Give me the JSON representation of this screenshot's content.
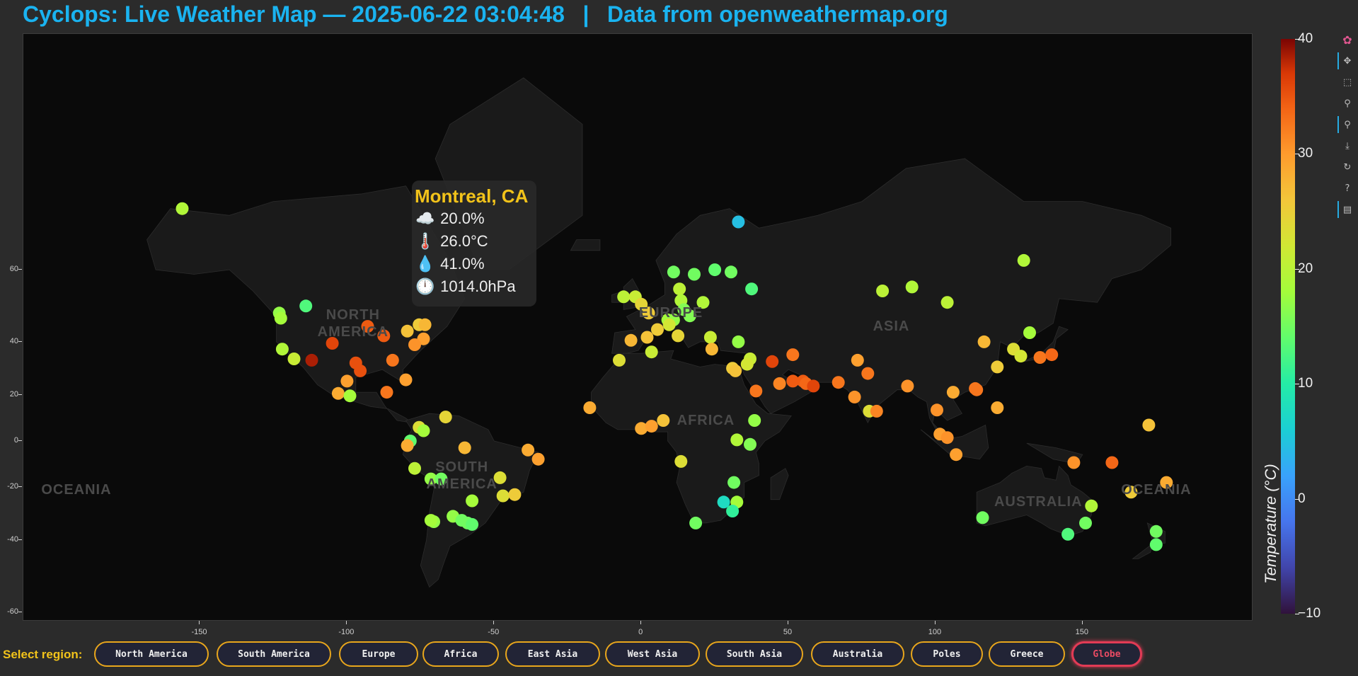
{
  "header": {
    "title": "Cyclops: Live Weather Map — 2025-06-22 03:04:48",
    "separator": "|",
    "source": "Data from openweathermap.org"
  },
  "map": {
    "lon_range": [
      -210,
      208
    ],
    "lat_range": [
      -62,
      85
    ],
    "continent_labels": [
      {
        "text": "NORTH\nAMERICA",
        "lon": -98,
        "lat": 46
      },
      {
        "text": "SOUTH\nAMERICA",
        "lon": -61,
        "lat": -15
      },
      {
        "text": "EUROPE",
        "lon": 10,
        "lat": 49
      },
      {
        "text": "AFRICA",
        "lon": 22,
        "lat": 9
      },
      {
        "text": "ASIA",
        "lon": 85,
        "lat": 45
      },
      {
        "text": "AUSTRALIA",
        "lon": 135,
        "lat": -26
      },
      {
        "text": "OCEANIA",
        "lon": -192,
        "lat": -21
      },
      {
        "text": "OCEANIA",
        "lon": 175,
        "lat": -21
      }
    ],
    "x_ticks": [
      "-150",
      "-100",
      "-50",
      "0",
      "50",
      "100",
      "150"
    ],
    "y_ticks": [
      "-60",
      "-40",
      "-20",
      "0",
      "20",
      "40",
      "60"
    ],
    "x_tick_values": [
      -150,
      -100,
      -50,
      0,
      50,
      100,
      150
    ],
    "y_tick_values": [
      -60,
      -40,
      -20,
      0,
      20,
      40,
      60
    ]
  },
  "chart_data": {
    "type": "scatter",
    "x_field": "longitude",
    "y_field": "latitude",
    "color_field": "temperature",
    "points": [
      {
        "lon": -156,
        "lat": 71,
        "t": 18
      },
      {
        "lon": 33,
        "lat": 69,
        "t": 4
      },
      {
        "lon": 130,
        "lat": 62,
        "t": 18
      },
      {
        "lon": 11,
        "lat": 59.5,
        "t": 14
      },
      {
        "lon": 18,
        "lat": 59,
        "t": 14
      },
      {
        "lon": 25,
        "lat": 60,
        "t": 13
      },
      {
        "lon": 30.5,
        "lat": 59.5,
        "t": 14
      },
      {
        "lon": 37.5,
        "lat": 55.5,
        "t": 12
      },
      {
        "lon": 13,
        "lat": 55.5,
        "t": 19
      },
      {
        "lon": -123,
        "lat": 49,
        "t": 16
      },
      {
        "lon": -122.5,
        "lat": 47.5,
        "t": 17
      },
      {
        "lon": -114,
        "lat": 51,
        "t": 12
      },
      {
        "lon": 92,
        "lat": 56,
        "t": 18
      },
      {
        "lon": 82,
        "lat": 55,
        "t": 19
      },
      {
        "lon": 104,
        "lat": 52,
        "t": 19
      },
      {
        "lon": -6,
        "lat": 53.5,
        "t": 19
      },
      {
        "lon": -2,
        "lat": 53.5,
        "t": 20
      },
      {
        "lon": 0,
        "lat": 51.5,
        "t": 23
      },
      {
        "lon": 21,
        "lat": 52,
        "t": 18
      },
      {
        "lon": 13.5,
        "lat": 52.5,
        "t": 18
      },
      {
        "lon": 16.5,
        "lat": 48.2,
        "t": 15
      },
      {
        "lon": 14.5,
        "lat": 50,
        "t": 15
      },
      {
        "lon": 9,
        "lat": 47,
        "t": 17
      },
      {
        "lon": 11,
        "lat": 47,
        "t": 16
      },
      {
        "lon": 2.5,
        "lat": 49,
        "t": 24
      },
      {
        "lon": 9.5,
        "lat": 45.5,
        "t": 21
      },
      {
        "lon": 5.5,
        "lat": 44,
        "t": 24
      },
      {
        "lon": 2,
        "lat": 41.5,
        "t": 25
      },
      {
        "lon": -3.5,
        "lat": 40.5,
        "t": 26
      },
      {
        "lon": 12.5,
        "lat": 42,
        "t": 23
      },
      {
        "lon": 3.5,
        "lat": 36.5,
        "t": 20
      },
      {
        "lon": -7.5,
        "lat": 33.5,
        "t": 22
      },
      {
        "lon": 23.5,
        "lat": 41.5,
        "t": 20
      },
      {
        "lon": 33,
        "lat": 40,
        "t": 16
      },
      {
        "lon": 37,
        "lat": 34,
        "t": 20
      },
      {
        "lon": 36,
        "lat": 32,
        "t": 21
      },
      {
        "lon": 31,
        "lat": 30.5,
        "t": 24
      },
      {
        "lon": 32,
        "lat": 29.5,
        "t": 25
      },
      {
        "lon": 24,
        "lat": 37.5,
        "t": 26
      },
      {
        "lon": 44.5,
        "lat": 33,
        "t": 35
      },
      {
        "lon": 51.5,
        "lat": 35.5,
        "t": 31
      },
      {
        "lon": 39,
        "lat": 21.5,
        "t": 31
      },
      {
        "lon": 47,
        "lat": 24.5,
        "t": 30
      },
      {
        "lon": 51.5,
        "lat": 25.5,
        "t": 33
      },
      {
        "lon": 55,
        "lat": 25.5,
        "t": 33
      },
      {
        "lon": 56,
        "lat": 24.5,
        "t": 32
      },
      {
        "lon": 58.5,
        "lat": 23.5,
        "t": 35
      },
      {
        "lon": 67,
        "lat": 25,
        "t": 31
      },
      {
        "lon": 73.5,
        "lat": 33.5,
        "t": 28
      },
      {
        "lon": 77,
        "lat": 28.5,
        "t": 31
      },
      {
        "lon": 72.5,
        "lat": 19,
        "t": 29
      },
      {
        "lon": 77.5,
        "lat": 13,
        "t": 22
      },
      {
        "lon": 80,
        "lat": 13,
        "t": 30
      },
      {
        "lon": 90.5,
        "lat": 23.5,
        "t": 29
      },
      {
        "lon": 100.5,
        "lat": 13.5,
        "t": 29
      },
      {
        "lon": 106,
        "lat": 21,
        "t": 27
      },
      {
        "lon": 113.5,
        "lat": 22.5,
        "t": 31
      },
      {
        "lon": 114,
        "lat": 22,
        "t": 31
      },
      {
        "lon": 121,
        "lat": 31,
        "t": 24
      },
      {
        "lon": 116.5,
        "lat": 40,
        "t": 26
      },
      {
        "lon": 126.5,
        "lat": 37.5,
        "t": 22
      },
      {
        "lon": 129,
        "lat": 35,
        "t": 21
      },
      {
        "lon": 132,
        "lat": 43,
        "t": 17
      },
      {
        "lon": 135.5,
        "lat": 34.5,
        "t": 31
      },
      {
        "lon": 139.5,
        "lat": 35.5,
        "t": 32
      },
      {
        "lon": 121,
        "lat": 14.5,
        "t": 27
      },
      {
        "lon": 101.5,
        "lat": 3,
        "t": 28
      },
      {
        "lon": 104,
        "lat": 1.5,
        "t": 29
      },
      {
        "lon": 107,
        "lat": -6,
        "t": 28
      },
      {
        "lon": 147,
        "lat": -9.5,
        "t": 29
      },
      {
        "lon": 160,
        "lat": -9.5,
        "t": 32
      },
      {
        "lon": 172.5,
        "lat": 7,
        "t": 25
      },
      {
        "lon": 178.5,
        "lat": -18,
        "t": 27
      },
      {
        "lon": 166.5,
        "lat": -22,
        "t": 24
      },
      {
        "lon": 153,
        "lat": -27.5,
        "t": 18
      },
      {
        "lon": 151,
        "lat": -34,
        "t": 14
      },
      {
        "lon": 145,
        "lat": -38,
        "t": 12
      },
      {
        "lon": 116,
        "lat": -32,
        "t": 14
      },
      {
        "lon": 175,
        "lat": -37,
        "t": 14
      },
      {
        "lon": 175,
        "lat": -41.5,
        "t": 13
      },
      {
        "lon": -118,
        "lat": 34,
        "t": 20
      },
      {
        "lon": -122,
        "lat": 37.5,
        "t": 18
      },
      {
        "lon": -112,
        "lat": 33.5,
        "t": 38
      },
      {
        "lon": -105,
        "lat": 39.5,
        "t": 35
      },
      {
        "lon": -93,
        "lat": 45,
        "t": 33
      },
      {
        "lon": -87.5,
        "lat": 42,
        "t": 33
      },
      {
        "lon": -97,
        "lat": 32.5,
        "t": 34
      },
      {
        "lon": -95.5,
        "lat": 29.5,
        "t": 34
      },
      {
        "lon": -84.5,
        "lat": 33.5,
        "t": 31
      },
      {
        "lon": -80,
        "lat": 26,
        "t": 28
      },
      {
        "lon": -100,
        "lat": 25.5,
        "t": 28
      },
      {
        "lon": -103,
        "lat": 20.5,
        "t": 27
      },
      {
        "lon": -99,
        "lat": 19.5,
        "t": 17
      },
      {
        "lon": -86.5,
        "lat": 21,
        "t": 31
      },
      {
        "lon": -79.5,
        "lat": 43.5,
        "t": 25
      },
      {
        "lon": -75.5,
        "lat": 45.5,
        "t": 24
      },
      {
        "lon": -73.5,
        "lat": 45.5,
        "t": 26
      },
      {
        "lon": -74,
        "lat": 41,
        "t": 28
      },
      {
        "lon": -77,
        "lat": 39,
        "t": 29
      },
      {
        "lon": -66.5,
        "lat": 10.5,
        "t": 23
      },
      {
        "lon": -75.5,
        "lat": 6,
        "t": 22
      },
      {
        "lon": -74,
        "lat": 4.5,
        "t": 17
      },
      {
        "lon": -78.5,
        "lat": 0,
        "t": 13
      },
      {
        "lon": -79.5,
        "lat": -2,
        "t": 27
      },
      {
        "lon": -77,
        "lat": -12,
        "t": 19
      },
      {
        "lon": -71.5,
        "lat": -16.5,
        "t": 16
      },
      {
        "lon": -68,
        "lat": -16.5,
        "t": 14
      },
      {
        "lon": -60,
        "lat": -3,
        "t": 26
      },
      {
        "lon": -38.5,
        "lat": -4,
        "t": 27
      },
      {
        "lon": -35,
        "lat": -8,
        "t": 28
      },
      {
        "lon": -48,
        "lat": -16,
        "t": 22
      },
      {
        "lon": -47,
        "lat": -23.5,
        "t": 22
      },
      {
        "lon": -43,
        "lat": -23,
        "t": 24
      },
      {
        "lon": -57.5,
        "lat": -25.5,
        "t": 17
      },
      {
        "lon": -64,
        "lat": -31.5,
        "t": 16
      },
      {
        "lon": -70.5,
        "lat": -33.5,
        "t": 16
      },
      {
        "lon": -71.5,
        "lat": -33,
        "t": 17
      },
      {
        "lon": -61,
        "lat": -33,
        "t": 14
      },
      {
        "lon": -59,
        "lat": -34,
        "t": 14
      },
      {
        "lon": -57.5,
        "lat": -34.5,
        "t": 13
      },
      {
        "lon": -17.5,
        "lat": 14.5,
        "t": 27
      },
      {
        "lon": 0,
        "lat": 5.5,
        "t": 27
      },
      {
        "lon": 3.5,
        "lat": 6.5,
        "t": 28
      },
      {
        "lon": 7.5,
        "lat": 9,
        "t": 25
      },
      {
        "lon": 38.5,
        "lat": 9,
        "t": 16
      },
      {
        "lon": 32.5,
        "lat": 0.5,
        "t": 18
      },
      {
        "lon": 37,
        "lat": -1.5,
        "t": 15
      },
      {
        "lon": 13.5,
        "lat": -9,
        "t": 22
      },
      {
        "lon": 31.5,
        "lat": -18,
        "t": 14
      },
      {
        "lon": 28,
        "lat": -26,
        "t": 7
      },
      {
        "lon": 32.5,
        "lat": -26,
        "t": 17
      },
      {
        "lon": 31,
        "lat": -29.5,
        "t": 10
      },
      {
        "lon": 18.5,
        "lat": -34,
        "t": 14
      }
    ]
  },
  "tooltip": {
    "city": "Montreal, CA",
    "clouds_icon": "☁️",
    "clouds": "20.0%",
    "temp_icon": "🌡️",
    "temp": "26.0°C",
    "humidity_icon": "💧",
    "humidity": "41.0%",
    "pressure_icon": "🕛",
    "pressure": "1014.0hPa"
  },
  "colorbar": {
    "label": "Temperature (°C)",
    "min": -10,
    "max": 40,
    "ticks": [
      "40",
      "30",
      "20",
      "10",
      "0",
      "−10"
    ],
    "tick_values": [
      40,
      30,
      20,
      10,
      0,
      -10
    ],
    "colors": [
      "#30123b",
      "#4145ab",
      "#4675ed",
      "#39a2fc",
      "#1bcfd4",
      "#24eca6",
      "#61fc6c",
      "#a4fc3b",
      "#d1e834",
      "#f3c63a",
      "#fe9b2d",
      "#f36315",
      "#d93806",
      "#7a0403"
    ]
  },
  "toolbar": {
    "tools": [
      {
        "name": "bokeh-logo-icon",
        "glyph": "✿",
        "active": false
      },
      {
        "name": "pan-icon",
        "glyph": "✥",
        "active": true
      },
      {
        "name": "box-zoom-icon",
        "glyph": "⬚",
        "active": false
      },
      {
        "name": "wheel-zoom-icon",
        "glyph": "⚲",
        "active": false
      },
      {
        "name": "hover-icon",
        "glyph": "⚲",
        "active": true
      },
      {
        "name": "save-icon",
        "glyph": "⤓",
        "active": false
      },
      {
        "name": "reset-icon",
        "glyph": "↻",
        "active": false
      },
      {
        "name": "help-icon",
        "glyph": "?",
        "active": false
      },
      {
        "name": "tooltip-icon",
        "glyph": "▤",
        "active": true
      }
    ]
  },
  "region_bar": {
    "label": "Select region:",
    "buttons": [
      {
        "label": "North America",
        "selected": false
      },
      {
        "label": "South America",
        "selected": false
      },
      {
        "label": "Europe",
        "selected": false
      },
      {
        "label": "Africa",
        "selected": false
      },
      {
        "label": "East Asia",
        "selected": false
      },
      {
        "label": "West Asia",
        "selected": false
      },
      {
        "label": "South Asia",
        "selected": false
      },
      {
        "label": "Australia",
        "selected": false
      },
      {
        "label": "Poles",
        "selected": false
      },
      {
        "label": "Greece",
        "selected": false
      },
      {
        "label": "Globe",
        "selected": true
      }
    ]
  }
}
